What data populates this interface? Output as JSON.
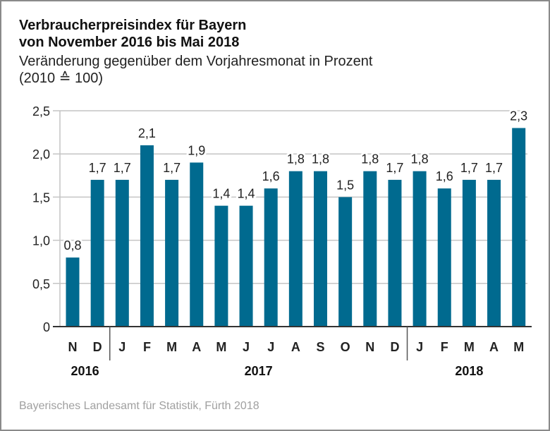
{
  "chart_data": {
    "type": "bar",
    "title_lines": [
      "Verbraucherpreisindex für Bayern",
      "von November 2016 bis Mai 2018"
    ],
    "subtitle_lines": [
      "Veränderung gegenüber dem Vorjahresmonat in Prozent",
      "(2010 ≙ 100)"
    ],
    "categories": [
      "N",
      "D",
      "J",
      "F",
      "M",
      "A",
      "M",
      "J",
      "J",
      "A",
      "S",
      "O",
      "N",
      "D",
      "J",
      "F",
      "M",
      "A",
      "M"
    ],
    "values": [
      0.8,
      1.7,
      1.7,
      2.1,
      1.7,
      1.9,
      1.4,
      1.4,
      1.6,
      1.8,
      1.8,
      1.5,
      1.8,
      1.7,
      1.8,
      1.6,
      1.7,
      1.7,
      2.3
    ],
    "value_labels": [
      "0,8",
      "1,7",
      "1,7",
      "2,1",
      "1,7",
      "1,9",
      "1,4",
      "1,4",
      "1,6",
      "1,8",
      "1,8",
      "1,5",
      "1,8",
      "1,7",
      "1,8",
      "1,6",
      "1,7",
      "1,7",
      "2,3"
    ],
    "year_groups": [
      {
        "label": "2016",
        "start": 0,
        "end": 1
      },
      {
        "label": "2017",
        "start": 2,
        "end": 13
      },
      {
        "label": "2018",
        "start": 14,
        "end": 18
      }
    ],
    "yticks": [
      0,
      0.5,
      1.0,
      1.5,
      2.0,
      2.5
    ],
    "ytick_labels": [
      "0",
      "0,5",
      "1,0",
      "1,5",
      "2,0",
      "2,5"
    ],
    "ylim": [
      0,
      2.5
    ],
    "xlabel": "",
    "ylabel": "",
    "grid": true,
    "bar_color": "#006a8f",
    "source": "Bayerisches Landesamt für Statistik, Fürth 2018"
  }
}
